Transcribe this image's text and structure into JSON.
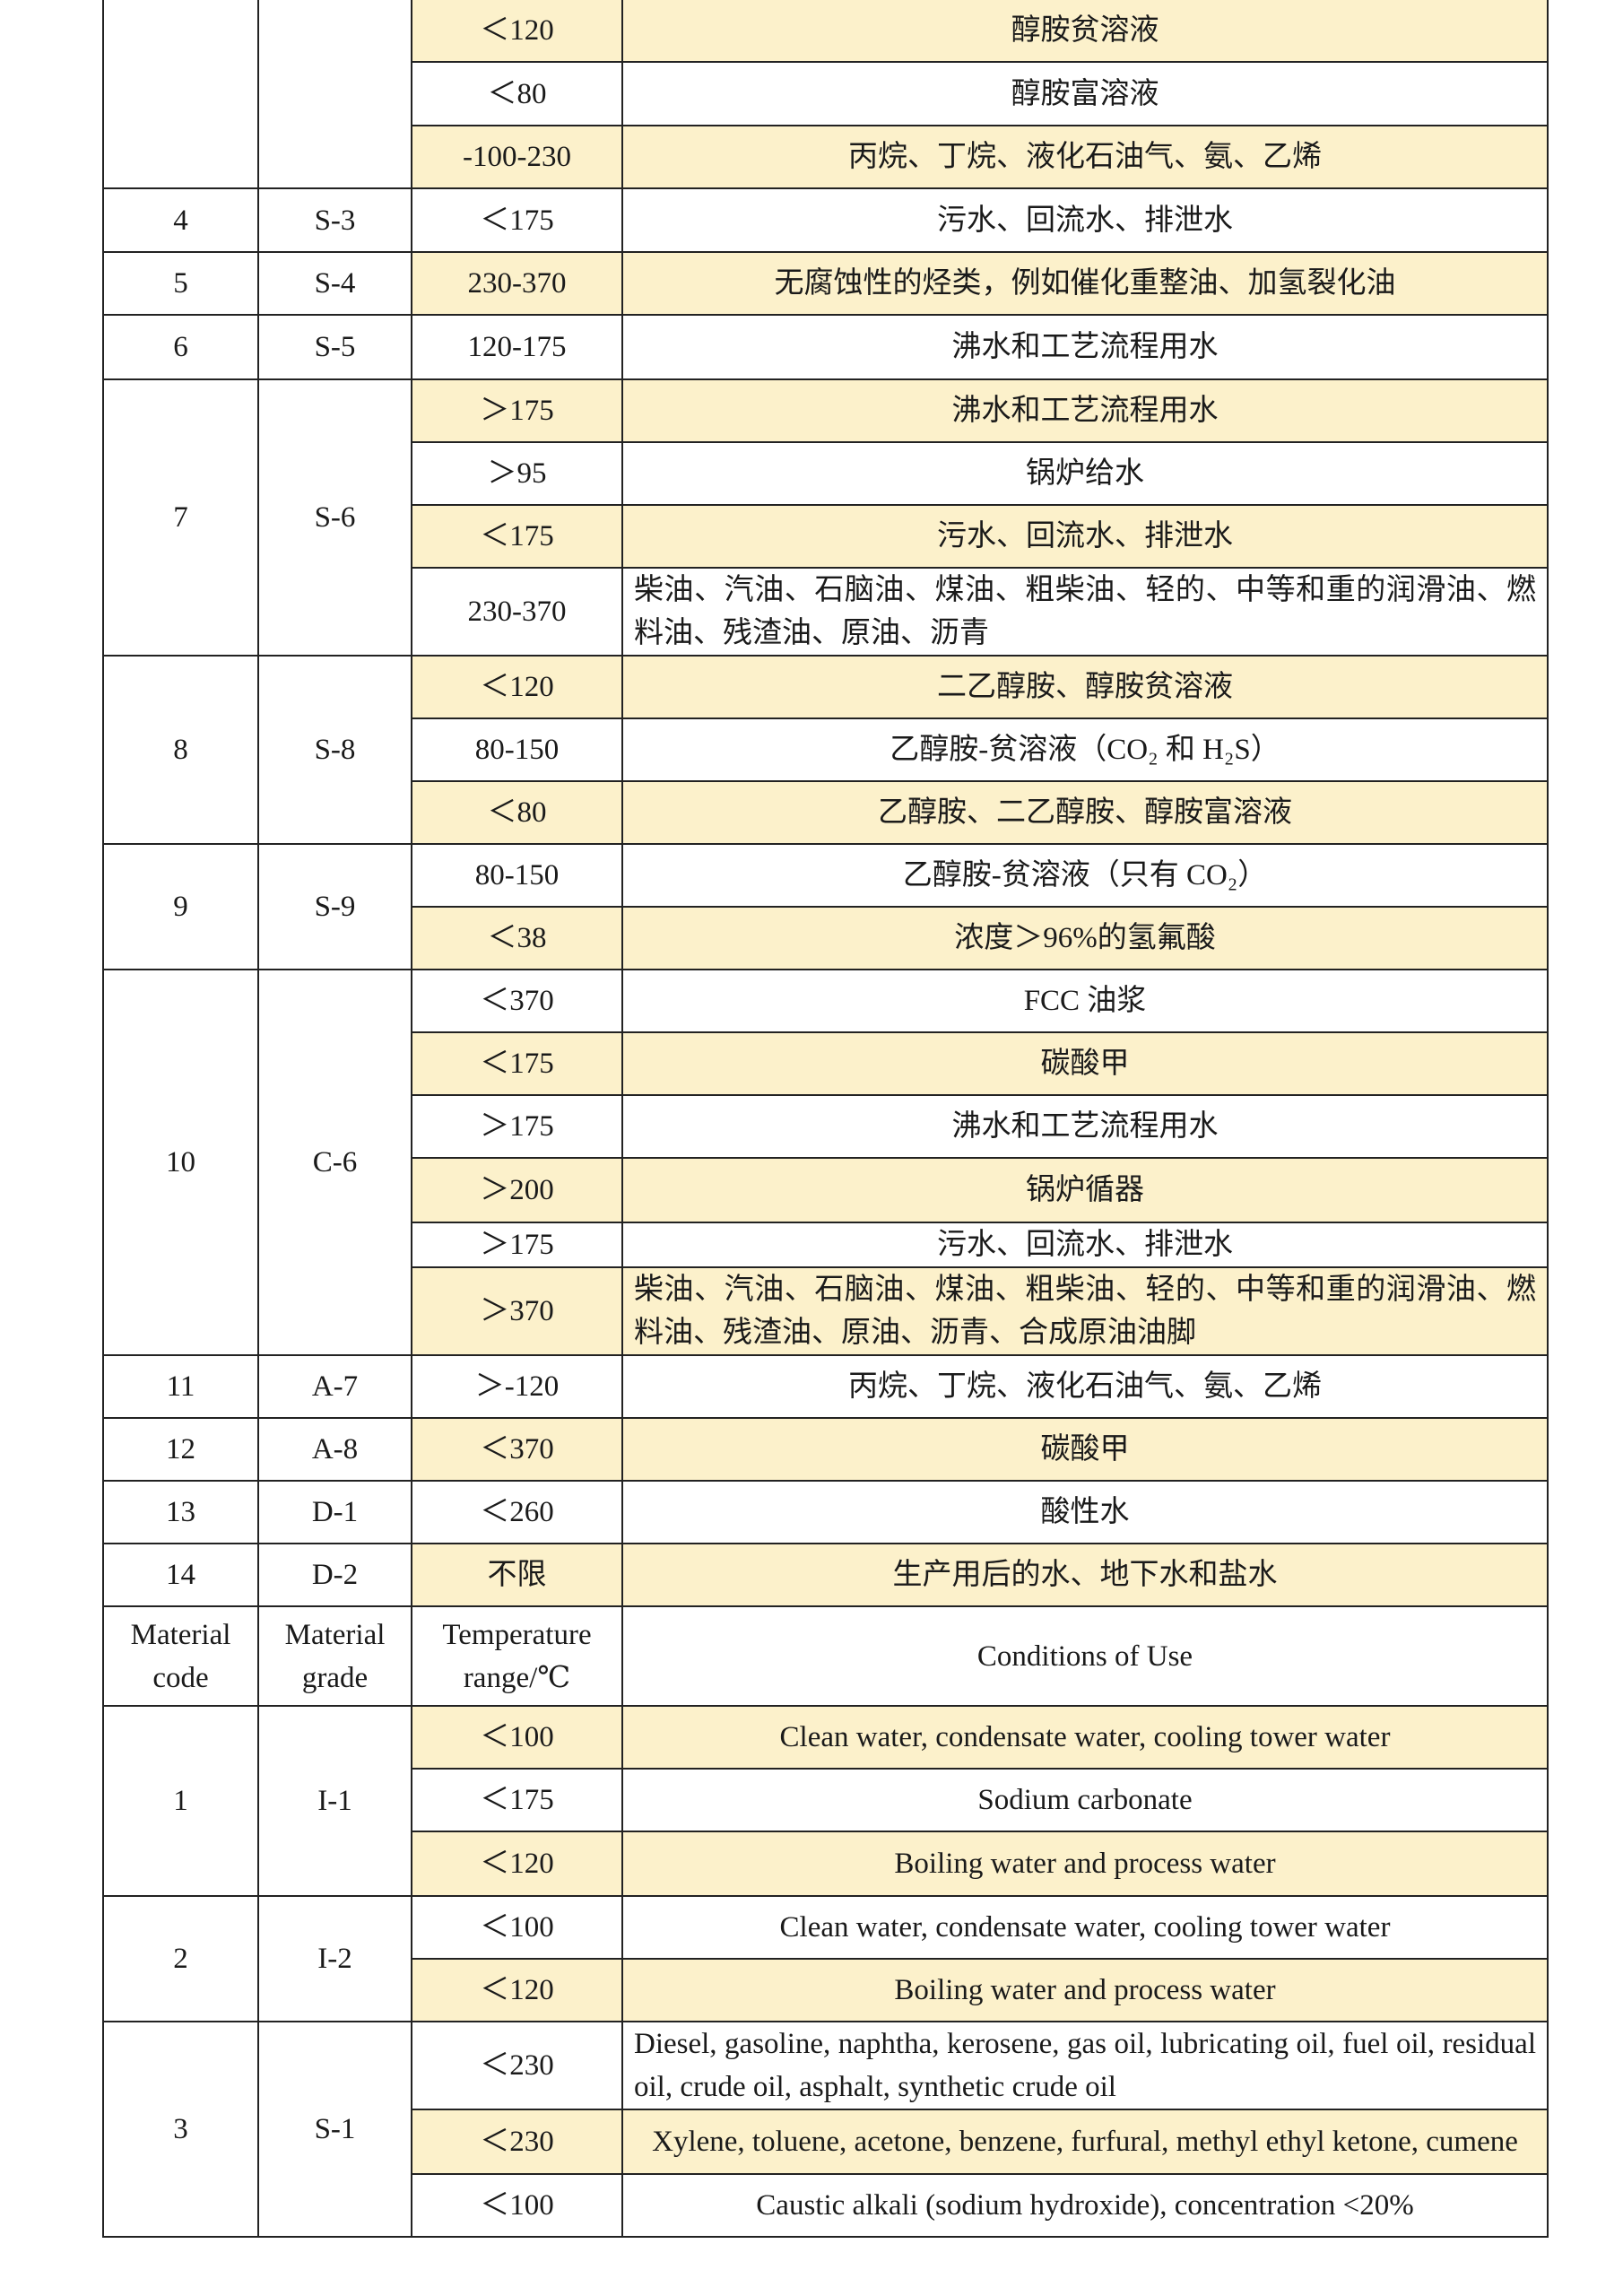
{
  "colors": {
    "highlight": "#fcf1cb",
    "border": "#222222"
  },
  "groups": [
    {
      "code": "",
      "grade": "",
      "items": [
        {
          "temp": "＜120",
          "use": "醇胺贫溶液",
          "hl": true,
          "h": 70
        },
        {
          "temp": "＜80",
          "use": "醇胺富溶液",
          "hl": false,
          "h": 71
        },
        {
          "temp": "-100-230",
          "use": "丙烷、丁烷、液化石油气、氨、乙烯",
          "hl": true,
          "h": 70
        }
      ]
    },
    {
      "code": "4",
      "grade": "S-3",
      "items": [
        {
          "temp": "＜175",
          "use": "污水、回流水、排泄水",
          "hl": false,
          "h": 71
        }
      ]
    },
    {
      "code": "5",
      "grade": "S-4",
      "items": [
        {
          "temp": "230-370",
          "use": "无腐蚀性的烃类，例如催化重整油、加氢裂化油",
          "hl": true,
          "h": 70
        }
      ]
    },
    {
      "code": "6",
      "grade": "S-5",
      "items": [
        {
          "temp": "120-175",
          "use": "沸水和工艺流程用水",
          "hl": false,
          "h": 72
        }
      ]
    },
    {
      "code": "7",
      "grade": "S-6",
      "items": [
        {
          "temp": "＞175",
          "use": "沸水和工艺流程用水",
          "hl": true,
          "h": 70
        },
        {
          "temp": "＞95",
          "use": "锅炉给水",
          "hl": false,
          "h": 70
        },
        {
          "temp": "＜175",
          "use": "污水、回流水、排泄水",
          "hl": true,
          "h": 70
        },
        {
          "temp": "230-370",
          "use": "柴油、汽油、石脑油、煤油、粗柴油、轻的、中等和重的润滑油、燃料油、残渣油、原油、沥青",
          "hl": false,
          "h": 98
        }
      ]
    },
    {
      "code": "8",
      "grade": "S-8",
      "items": [
        {
          "temp": "＜120",
          "use": "二乙醇胺、醇胺贫溶液",
          "hl": true,
          "h": 70
        },
        {
          "temp": "80-150",
          "use": "乙醇胺-贫溶液（CO₂ 和 H₂S）",
          "hl": false,
          "h": 70
        },
        {
          "temp": "＜80",
          "use": "乙醇胺、二乙醇胺、醇胺富溶液",
          "hl": true,
          "h": 70
        }
      ]
    },
    {
      "code": "9",
      "grade": "S-9",
      "items": [
        {
          "temp": "80-150",
          "use": "乙醇胺-贫溶液（只有 CO₂）",
          "hl": false,
          "h": 70
        },
        {
          "temp": "＜38",
          "use": "浓度＞96%的氢氟酸",
          "hl": true,
          "h": 70
        }
      ]
    },
    {
      "code": "10",
      "grade": "C-6",
      "items": [
        {
          "temp": "＜370",
          "use": "FCC 油浆",
          "hl": false,
          "h": 70
        },
        {
          "temp": "＜175",
          "use": "碳酸甲",
          "hl": true,
          "h": 70
        },
        {
          "temp": "＞175",
          "use": "沸水和工艺流程用水",
          "hl": false,
          "h": 70
        },
        {
          "temp": "＞200",
          "use": "锅炉循器",
          "hl": true,
          "h": 72
        },
        {
          "temp": "＞175",
          "use": "污水、回流水、排泄水",
          "hl": false,
          "h": 49
        },
        {
          "temp": "＞370",
          "use": "柴油、汽油、石脑油、煤油、粗柴油、轻的、中等和重的润滑油、燃料油、残渣油、原油、沥青、合成原油油脚",
          "hl": true,
          "h": 98
        }
      ]
    },
    {
      "code": "11",
      "grade": "A-7",
      "items": [
        {
          "temp": "＞-120",
          "use": "丙烷、丁烷、液化石油气、氨、乙烯",
          "hl": false,
          "h": 70
        }
      ]
    },
    {
      "code": "12",
      "grade": "A-8",
      "items": [
        {
          "temp": "＜370",
          "use": "碳酸甲",
          "hl": true,
          "h": 70
        }
      ]
    },
    {
      "code": "13",
      "grade": "D-1",
      "items": [
        {
          "temp": "＜260",
          "use": "酸性水",
          "hl": false,
          "h": 70
        }
      ]
    },
    {
      "code": "14",
      "grade": "D-2",
      "items": [
        {
          "temp": "不限",
          "use": "生产用后的水、地下水和盐水",
          "hl": true,
          "h": 70
        }
      ]
    }
  ],
  "header": {
    "code": "Material code",
    "grade": "Material grade",
    "temp": "Temperature range/℃",
    "use": "Conditions of Use"
  },
  "groups_en": [
    {
      "code": "1",
      "grade": "I-1",
      "items": [
        {
          "temp": "＜100",
          "use": "Clean water, condensate water, cooling tower water",
          "hl": true,
          "h": 70
        },
        {
          "temp": "＜175",
          "use": "Sodium carbonate",
          "hl": false,
          "h": 70
        },
        {
          "temp": "＜120",
          "use": "Boiling water and process water",
          "hl": true,
          "h": 72
        }
      ]
    },
    {
      "code": "2",
      "grade": "I-2",
      "items": [
        {
          "temp": "＜100",
          "use": "Clean water, condensate water, cooling tower water",
          "hl": false,
          "h": 70
        },
        {
          "temp": "＜120",
          "use": "Boiling water and process water",
          "hl": true,
          "h": 70
        }
      ]
    },
    {
      "code": "3",
      "grade": "S-1",
      "items": [
        {
          "temp": "＜230",
          "use": "Diesel, gasoline, naphtha, kerosene, gas oil, lubricating oil, fuel oil, residual oil, crude oil, asphalt, synthetic crude oil",
          "hl": false,
          "h": 98
        },
        {
          "temp": "＜230",
          "use": "Xylene, toluene, acetone, benzene, furfural, methyl ethyl ketone, cumene",
          "hl": true,
          "h": 72
        },
        {
          "temp": "＜100",
          "use": "Caustic alkali (sodium hydroxide), concentration <20%",
          "hl": false,
          "h": 70
        }
      ]
    }
  ]
}
